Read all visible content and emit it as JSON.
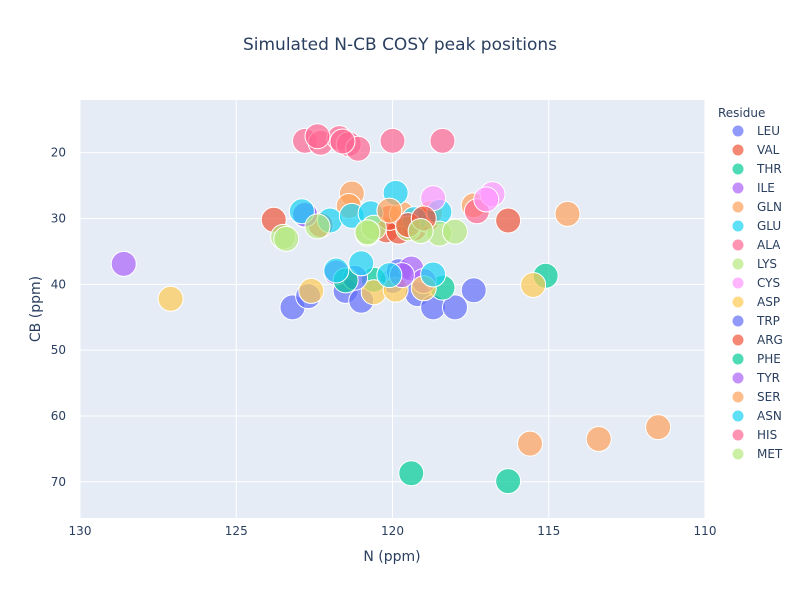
{
  "chart_data": {
    "type": "scatter",
    "title": "Simulated N-CB COSY peak positions",
    "xlabel": "N (ppm)",
    "ylabel": "CB (ppm)",
    "xlim": [
      130,
      110
    ],
    "ylim": [
      75.5,
      12
    ],
    "x_reversed": true,
    "y_reversed": true,
    "x_ticks": [
      130,
      125,
      120,
      115,
      110
    ],
    "y_ticks": [
      20,
      30,
      40,
      50,
      60,
      70
    ],
    "grid": true,
    "legend_title": "Residue",
    "legend_position": "right",
    "series": [
      {
        "name": "LEU",
        "color": "#636efa",
        "points": [
          [
            123.2,
            43.5
          ],
          [
            122.7,
            41.8
          ],
          [
            121.5,
            41.0
          ],
          [
            121.0,
            42.5
          ],
          [
            120.0,
            39.5
          ],
          [
            119.8,
            38.0
          ],
          [
            119.2,
            41.5
          ],
          [
            118.7,
            43.5
          ],
          [
            118.0,
            43.5
          ],
          [
            117.4,
            40.9
          ],
          [
            122.8,
            29.5
          ]
        ]
      },
      {
        "name": "VAL",
        "color": "#ef553b",
        "points": [
          [
            123.8,
            30.2
          ],
          [
            122.3,
            31.0
          ],
          [
            120.2,
            31.8
          ],
          [
            119.8,
            32.0
          ],
          [
            119.3,
            31.5
          ],
          [
            118.9,
            30.2
          ],
          [
            116.3,
            30.3
          ],
          [
            120.1,
            29.9
          ]
        ]
      },
      {
        "name": "THR",
        "color": "#00cc96",
        "points": [
          [
            120.6,
            39.3
          ],
          [
            118.4,
            40.5
          ],
          [
            115.1,
            38.7
          ],
          [
            119.4,
            68.7
          ],
          [
            116.3,
            69.9
          ]
        ]
      },
      {
        "name": "ILE",
        "color": "#ab63fa",
        "points": [
          [
            128.6,
            36.9
          ],
          [
            121.8,
            38.2
          ],
          [
            119.4,
            37.6
          ],
          [
            119.0,
            39.5
          ],
          [
            122.8,
            29.4
          ]
        ]
      },
      {
        "name": "GLN",
        "color": "#ffa15a",
        "points": [
          [
            121.3,
            26.2
          ],
          [
            121.4,
            28.1
          ],
          [
            119.7,
            29.3
          ],
          [
            118.8,
            29.2
          ],
          [
            117.4,
            28.0
          ],
          [
            114.4,
            29.3
          ]
        ]
      },
      {
        "name": "GLU",
        "color": "#19d3f3",
        "points": [
          [
            122.9,
            28.9
          ],
          [
            122.0,
            30.3
          ],
          [
            121.3,
            29.6
          ],
          [
            120.7,
            29.2
          ],
          [
            119.9,
            26.1
          ],
          [
            119.3,
            30.1
          ],
          [
            118.5,
            29.0
          ]
        ]
      },
      {
        "name": "ALA",
        "color": "#ff6692",
        "points": [
          [
            122.8,
            18.2
          ],
          [
            122.3,
            18.5
          ],
          [
            121.7,
            17.8
          ],
          [
            121.4,
            18.7
          ],
          [
            121.1,
            19.4
          ],
          [
            120.0,
            18.2
          ],
          [
            118.4,
            18.2
          ],
          [
            117.3,
            28.9
          ]
        ]
      },
      {
        "name": "LYS",
        "color": "#b6e880",
        "points": [
          [
            123.5,
            32.8
          ],
          [
            122.4,
            31.2
          ],
          [
            120.8,
            32.3
          ],
          [
            120.6,
            31.4
          ],
          [
            119.5,
            31.5
          ],
          [
            118.5,
            32.3
          ],
          [
            118.0,
            32.0
          ]
        ]
      },
      {
        "name": "CYS",
        "color": "#ff97ff",
        "points": [
          [
            118.7,
            26.9
          ],
          [
            116.8,
            26.3
          ],
          [
            117.0,
            27.1
          ]
        ]
      },
      {
        "name": "ASP",
        "color": "#fecb52",
        "points": [
          [
            127.1,
            42.2
          ],
          [
            122.6,
            41.0
          ],
          [
            120.6,
            41.2
          ],
          [
            119.9,
            40.8
          ],
          [
            119.0,
            40.6
          ],
          [
            115.5,
            40.1
          ]
        ]
      },
      {
        "name": "TRP",
        "color": "#636efa",
        "points": [
          [
            121.2,
            39.0
          ]
        ]
      },
      {
        "name": "ARG",
        "color": "#ef553b",
        "points": [
          [
            119.5,
            31.0
          ],
          [
            119.0,
            30.0
          ]
        ]
      },
      {
        "name": "PHE",
        "color": "#00cc96",
        "points": [
          [
            121.5,
            39.4
          ]
        ]
      },
      {
        "name": "TYR",
        "color": "#ab63fa",
        "points": [
          [
            119.7,
            38.6
          ]
        ]
      },
      {
        "name": "SER",
        "color": "#ffa15a",
        "points": [
          [
            115.6,
            64.2
          ],
          [
            113.4,
            63.5
          ],
          [
            111.5,
            61.7
          ],
          [
            120.1,
            28.8
          ]
        ]
      },
      {
        "name": "ASN",
        "color": "#19d3f3",
        "points": [
          [
            121.8,
            37.9
          ],
          [
            121.0,
            36.8
          ],
          [
            120.1,
            38.6
          ],
          [
            118.7,
            38.5
          ]
        ]
      },
      {
        "name": "HIS",
        "color": "#ff6692",
        "points": [
          [
            122.4,
            17.5
          ],
          [
            121.6,
            18.3
          ]
        ]
      },
      {
        "name": "MET",
        "color": "#b6e880",
        "points": [
          [
            123.4,
            33.1
          ],
          [
            120.8,
            32.1
          ],
          [
            119.1,
            31.9
          ]
        ]
      }
    ]
  }
}
